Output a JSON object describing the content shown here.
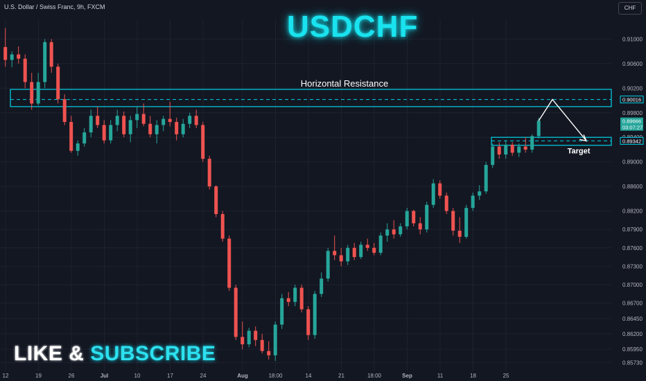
{
  "header": {
    "symbol_description": "U.S. Dollar / Swiss Franc, 9h, FXCM",
    "currency_button": "CHF"
  },
  "overlay": {
    "title": "USDCHF",
    "resistance_label": "Horizontal Resistance",
    "target_label": "Target",
    "cta_like": "LIKE",
    "cta_amp": "&",
    "cta_subscribe": "SUBSCRIBE"
  },
  "chart_data": {
    "type": "candlestick",
    "symbol": "USDCHF",
    "timeframe": "9h",
    "ylim": [
      0.8559,
      0.9132
    ],
    "y_ticks": [
      0.91,
      0.906,
      0.902,
      0.898,
      0.894,
      0.89,
      0.886,
      0.882,
      0.879,
      0.876,
      0.873,
      0.87,
      0.867,
      0.8645,
      0.862,
      0.8595,
      0.8573
    ],
    "y_tick_labels": [
      "0.91000",
      "0.90600",
      "0.90200",
      "0.89800",
      "0.89400",
      "0.89000",
      "0.88600",
      "0.88200",
      "0.87900",
      "0.87600",
      "0.87300",
      "0.87000",
      "0.86700",
      "0.86450",
      "0.86200",
      "0.85950",
      "0.85730"
    ],
    "x_tick_labels": [
      "12",
      "19",
      "26",
      "Jul",
      "10",
      "17",
      "24",
      "Aug",
      "18:00",
      "14",
      "21",
      "18:00",
      "Sep",
      "11",
      "18",
      "25"
    ],
    "x_tick_positions": [
      0.0,
      5.0,
      10.0,
      15.0,
      20.0,
      25.0,
      30.0,
      36.0,
      41.0,
      46.0,
      51.0,
      56.0,
      61.0,
      66.0,
      71.0,
      76.0
    ],
    "x_axis_note": "tick positions are in candle-index units",
    "candles": [
      {
        "o": 0.9087,
        "h": 0.9118,
        "l": 0.9055,
        "c": 0.9066
      },
      {
        "o": 0.9066,
        "h": 0.908,
        "l": 0.9054,
        "c": 0.9075
      },
      {
        "o": 0.9075,
        "h": 0.9088,
        "l": 0.906,
        "c": 0.9068
      },
      {
        "o": 0.9068,
        "h": 0.9075,
        "l": 0.902,
        "c": 0.903
      },
      {
        "o": 0.903,
        "h": 0.9045,
        "l": 0.8985,
        "c": 0.8995
      },
      {
        "o": 0.8995,
        "h": 0.9045,
        "l": 0.8992,
        "c": 0.903
      },
      {
        "o": 0.903,
        "h": 0.91,
        "l": 0.902,
        "c": 0.9095
      },
      {
        "o": 0.9095,
        "h": 0.91,
        "l": 0.9045,
        "c": 0.9055
      },
      {
        "o": 0.9055,
        "h": 0.906,
        "l": 0.8995,
        "c": 0.9002
      },
      {
        "o": 0.9002,
        "h": 0.901,
        "l": 0.896,
        "c": 0.8965
      },
      {
        "o": 0.8965,
        "h": 0.8975,
        "l": 0.8915,
        "c": 0.8918
      },
      {
        "o": 0.8918,
        "h": 0.8935,
        "l": 0.891,
        "c": 0.893
      },
      {
        "o": 0.893,
        "h": 0.8955,
        "l": 0.8925,
        "c": 0.8948
      },
      {
        "o": 0.8948,
        "h": 0.8985,
        "l": 0.894,
        "c": 0.8975
      },
      {
        "o": 0.8975,
        "h": 0.899,
        "l": 0.8955,
        "c": 0.896
      },
      {
        "o": 0.896,
        "h": 0.8968,
        "l": 0.893,
        "c": 0.8935
      },
      {
        "o": 0.8935,
        "h": 0.8968,
        "l": 0.893,
        "c": 0.896
      },
      {
        "o": 0.896,
        "h": 0.8985,
        "l": 0.895,
        "c": 0.8975
      },
      {
        "o": 0.8975,
        "h": 0.8982,
        "l": 0.894,
        "c": 0.8945
      },
      {
        "o": 0.8945,
        "h": 0.8975,
        "l": 0.8932,
        "c": 0.8968
      },
      {
        "o": 0.8968,
        "h": 0.899,
        "l": 0.8955,
        "c": 0.8978
      },
      {
        "o": 0.8978,
        "h": 0.8995,
        "l": 0.8958,
        "c": 0.8962
      },
      {
        "o": 0.8962,
        "h": 0.8975,
        "l": 0.894,
        "c": 0.8945
      },
      {
        "o": 0.8945,
        "h": 0.8968,
        "l": 0.893,
        "c": 0.896
      },
      {
        "o": 0.896,
        "h": 0.8975,
        "l": 0.895,
        "c": 0.897
      },
      {
        "o": 0.897,
        "h": 0.8998,
        "l": 0.8958,
        "c": 0.8965
      },
      {
        "o": 0.8965,
        "h": 0.8972,
        "l": 0.8935,
        "c": 0.8945
      },
      {
        "o": 0.8945,
        "h": 0.897,
        "l": 0.894,
        "c": 0.8962
      },
      {
        "o": 0.8962,
        "h": 0.898,
        "l": 0.8955,
        "c": 0.8975
      },
      {
        "o": 0.8975,
        "h": 0.8985,
        "l": 0.8955,
        "c": 0.896
      },
      {
        "o": 0.896,
        "h": 0.8965,
        "l": 0.89,
        "c": 0.8905
      },
      {
        "o": 0.8905,
        "h": 0.891,
        "l": 0.8855,
        "c": 0.886
      },
      {
        "o": 0.886,
        "h": 0.8862,
        "l": 0.881,
        "c": 0.8815
      },
      {
        "o": 0.8815,
        "h": 0.882,
        "l": 0.877,
        "c": 0.8775
      },
      {
        "o": 0.8775,
        "h": 0.878,
        "l": 0.869,
        "c": 0.8695
      },
      {
        "o": 0.8695,
        "h": 0.87,
        "l": 0.861,
        "c": 0.8615
      },
      {
        "o": 0.8615,
        "h": 0.864,
        "l": 0.8595,
        "c": 0.8603
      },
      {
        "o": 0.8603,
        "h": 0.863,
        "l": 0.8598,
        "c": 0.8625
      },
      {
        "o": 0.8625,
        "h": 0.8632,
        "l": 0.86,
        "c": 0.861
      },
      {
        "o": 0.861,
        "h": 0.862,
        "l": 0.8588,
        "c": 0.8592
      },
      {
        "o": 0.8592,
        "h": 0.8608,
        "l": 0.8578,
        "c": 0.8585
      },
      {
        "o": 0.8585,
        "h": 0.864,
        "l": 0.8576,
        "c": 0.8635
      },
      {
        "o": 0.8635,
        "h": 0.8685,
        "l": 0.8628,
        "c": 0.8678
      },
      {
        "o": 0.8678,
        "h": 0.8688,
        "l": 0.8665,
        "c": 0.8672
      },
      {
        "o": 0.8672,
        "h": 0.87,
        "l": 0.8665,
        "c": 0.8695
      },
      {
        "o": 0.8695,
        "h": 0.87,
        "l": 0.8655,
        "c": 0.866
      },
      {
        "o": 0.866,
        "h": 0.8665,
        "l": 0.861,
        "c": 0.8618
      },
      {
        "o": 0.8618,
        "h": 0.869,
        "l": 0.8612,
        "c": 0.8685
      },
      {
        "o": 0.8685,
        "h": 0.872,
        "l": 0.868,
        "c": 0.871
      },
      {
        "o": 0.871,
        "h": 0.876,
        "l": 0.8705,
        "c": 0.8755
      },
      {
        "o": 0.8755,
        "h": 0.878,
        "l": 0.874,
        "c": 0.8748
      },
      {
        "o": 0.8748,
        "h": 0.876,
        "l": 0.873,
        "c": 0.8738
      },
      {
        "o": 0.8738,
        "h": 0.8765,
        "l": 0.8732,
        "c": 0.876
      },
      {
        "o": 0.876,
        "h": 0.8768,
        "l": 0.874,
        "c": 0.8745
      },
      {
        "o": 0.8745,
        "h": 0.877,
        "l": 0.8742,
        "c": 0.8765
      },
      {
        "o": 0.8765,
        "h": 0.8775,
        "l": 0.8755,
        "c": 0.876
      },
      {
        "o": 0.876,
        "h": 0.8768,
        "l": 0.8748,
        "c": 0.8752
      },
      {
        "o": 0.8752,
        "h": 0.8785,
        "l": 0.8748,
        "c": 0.878
      },
      {
        "o": 0.878,
        "h": 0.88,
        "l": 0.877,
        "c": 0.879
      },
      {
        "o": 0.879,
        "h": 0.8805,
        "l": 0.8775,
        "c": 0.8782
      },
      {
        "o": 0.8782,
        "h": 0.88,
        "l": 0.8778,
        "c": 0.8795
      },
      {
        "o": 0.8795,
        "h": 0.8825,
        "l": 0.879,
        "c": 0.882
      },
      {
        "o": 0.882,
        "h": 0.8822,
        "l": 0.8795,
        "c": 0.88
      },
      {
        "o": 0.88,
        "h": 0.881,
        "l": 0.8782,
        "c": 0.879
      },
      {
        "o": 0.879,
        "h": 0.8835,
        "l": 0.8785,
        "c": 0.883
      },
      {
        "o": 0.883,
        "h": 0.8872,
        "l": 0.8825,
        "c": 0.8865
      },
      {
        "o": 0.8865,
        "h": 0.887,
        "l": 0.884,
        "c": 0.8845
      },
      {
        "o": 0.8845,
        "h": 0.885,
        "l": 0.8815,
        "c": 0.882
      },
      {
        "o": 0.882,
        "h": 0.8825,
        "l": 0.878,
        "c": 0.8788
      },
      {
        "o": 0.8788,
        "h": 0.881,
        "l": 0.8768,
        "c": 0.8778
      },
      {
        "o": 0.8778,
        "h": 0.883,
        "l": 0.8775,
        "c": 0.8825
      },
      {
        "o": 0.8825,
        "h": 0.885,
        "l": 0.882,
        "c": 0.8845
      },
      {
        "o": 0.8845,
        "h": 0.8862,
        "l": 0.8838,
        "c": 0.8852
      },
      {
        "o": 0.8852,
        "h": 0.89,
        "l": 0.8848,
        "c": 0.8895
      },
      {
        "o": 0.8895,
        "h": 0.893,
        "l": 0.889,
        "c": 0.8925
      },
      {
        "o": 0.8925,
        "h": 0.8932,
        "l": 0.8905,
        "c": 0.8912
      },
      {
        "o": 0.8912,
        "h": 0.8935,
        "l": 0.8905,
        "c": 0.8928
      },
      {
        "o": 0.8928,
        "h": 0.8932,
        "l": 0.891,
        "c": 0.8915
      },
      {
        "o": 0.8915,
        "h": 0.893,
        "l": 0.8908,
        "c": 0.8925
      },
      {
        "o": 0.8925,
        "h": 0.894,
        "l": 0.8915,
        "c": 0.892
      },
      {
        "o": 0.892,
        "h": 0.8945,
        "l": 0.8915,
        "c": 0.8942
      },
      {
        "o": 0.8942,
        "h": 0.8972,
        "l": 0.8938,
        "c": 0.8967
      }
    ],
    "last_price": 0.89666,
    "last_price_label": "0.89666",
    "countdown_label": "03:07:27",
    "resistance_zone": [
      0.899,
      0.9018
    ],
    "resistance_line": 0.90016,
    "resistance_line_label": "0.90016",
    "target_zone": [
      0.8927,
      0.894
    ],
    "target_line": 0.89342,
    "target_line_label": "0.89342",
    "target_line_hidden_label": "0.89400",
    "projection_path": [
      0.8967,
      0.90016,
      0.89342
    ],
    "colors": {
      "background": "#131722",
      "up": "#26a69a",
      "down": "#ef5350",
      "accent": "#00d4e8",
      "grid": "#1e2230",
      "axis_text": "#b2b5be"
    }
  }
}
